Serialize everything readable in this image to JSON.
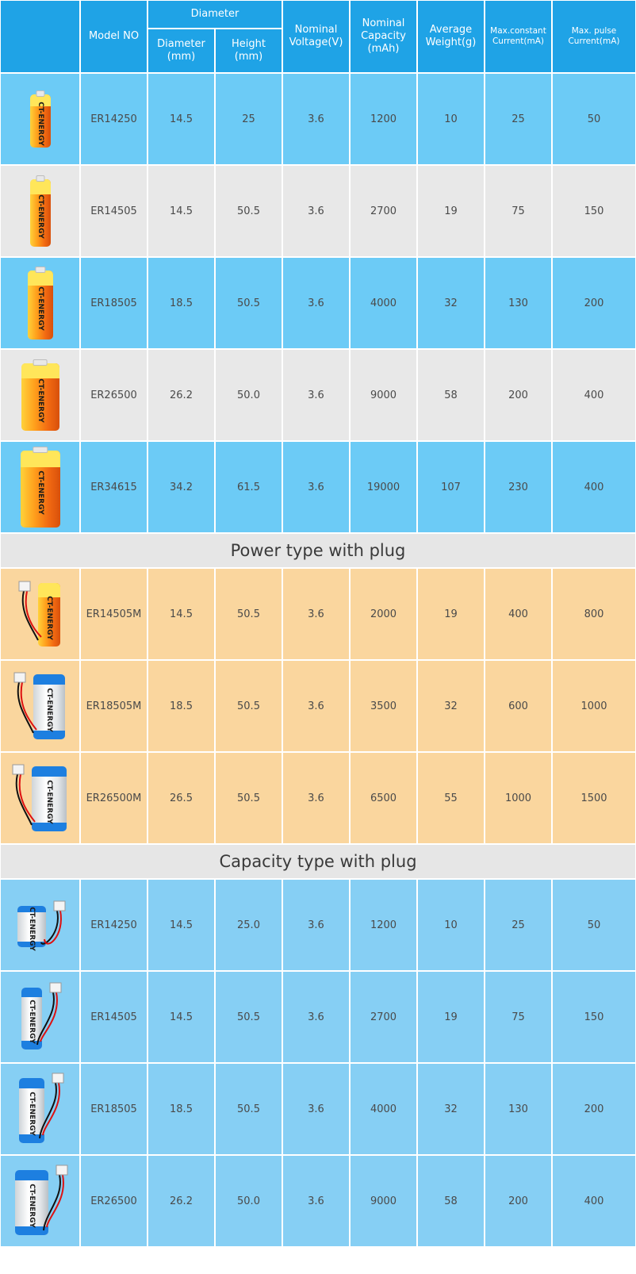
{
  "header": {
    "model": "Model NO",
    "diameter_group": "Diameter",
    "diameter_mm": "Diameter\n(mm)",
    "height_mm": "Height\n(mm)",
    "voltage": "Nominal\nVoltage(V)",
    "capacity": "Nominal\nCapacity\n(mAh)",
    "weight": "Average\nWeight(g)",
    "max_constant": "Max.constant\nCurrent(mA)",
    "max_pulse": "Max. pulse\nCurrent(mA)"
  },
  "sections": [
    {
      "title": "",
      "row_color": "#6ccbf6",
      "alt_color": "#e8e8e8",
      "battery_style": "orange",
      "rows": [
        {
          "model": "ER14250",
          "diameter": "14.5",
          "height": "25",
          "voltage": "3.6",
          "capacity": "1200",
          "weight": "10",
          "max_constant": "25",
          "max_pulse": "50"
        },
        {
          "model": "ER14505",
          "diameter": "14.5",
          "height": "50.5",
          "voltage": "3.6",
          "capacity": "2700",
          "weight": "19",
          "max_constant": "75",
          "max_pulse": "150"
        },
        {
          "model": "ER18505",
          "diameter": "18.5",
          "height": "50.5",
          "voltage": "3.6",
          "capacity": "4000",
          "weight": "32",
          "max_constant": "130",
          "max_pulse": "200"
        },
        {
          "model": "ER26500",
          "diameter": "26.2",
          "height": "50.0",
          "voltage": "3.6",
          "capacity": "9000",
          "weight": "58",
          "max_constant": "200",
          "max_pulse": "400"
        },
        {
          "model": "ER34615",
          "diameter": "34.2",
          "height": "61.5",
          "voltage": "3.6",
          "capacity": "19000",
          "weight": "107",
          "max_constant": "230",
          "max_pulse": "400"
        }
      ]
    },
    {
      "title": "Power type with plug",
      "row_color": "#fad69e",
      "alt_color": "#fad69e",
      "battery_style": "plug",
      "rows": [
        {
          "model": "ER14505M",
          "diameter": "14.5",
          "height": "50.5",
          "voltage": "3.6",
          "capacity": "2000",
          "weight": "19",
          "max_constant": "400",
          "max_pulse": "800"
        },
        {
          "model": "ER18505M",
          "diameter": "18.5",
          "height": "50.5",
          "voltage": "3.6",
          "capacity": "3500",
          "weight": "32",
          "max_constant": "600",
          "max_pulse": "1000"
        },
        {
          "model": "ER26500M",
          "diameter": "26.5",
          "height": "50.5",
          "voltage": "3.6",
          "capacity": "6500",
          "weight": "55",
          "max_constant": "1000",
          "max_pulse": "1500"
        }
      ]
    },
    {
      "title": "Capacity type with plug",
      "row_color": "#86cff4",
      "alt_color": "#86cff4",
      "battery_style": "white",
      "rows": [
        {
          "model": "ER14250",
          "diameter": "14.5",
          "height": "25.0",
          "voltage": "3.6",
          "capacity": "1200",
          "weight": "10",
          "max_constant": "25",
          "max_pulse": "50"
        },
        {
          "model": "ER14505",
          "diameter": "14.5",
          "height": "50.5",
          "voltage": "3.6",
          "capacity": "2700",
          "weight": "19",
          "max_constant": "75",
          "max_pulse": "150"
        },
        {
          "model": "ER18505",
          "diameter": "18.5",
          "height": "50.5",
          "voltage": "3.6",
          "capacity": "4000",
          "weight": "32",
          "max_constant": "130",
          "max_pulse": "200"
        },
        {
          "model": "ER26500",
          "diameter": "26.2",
          "height": "50.0",
          "voltage": "3.6",
          "capacity": "9000",
          "weight": "58",
          "max_constant": "200",
          "max_pulse": "400"
        }
      ]
    }
  ],
  "brand_text": "CT-ENERGY",
  "colors": {
    "header_bg": "#1fa3e6",
    "section_title_bg": "#e6e6e6",
    "grid_line": "#ffffff"
  }
}
